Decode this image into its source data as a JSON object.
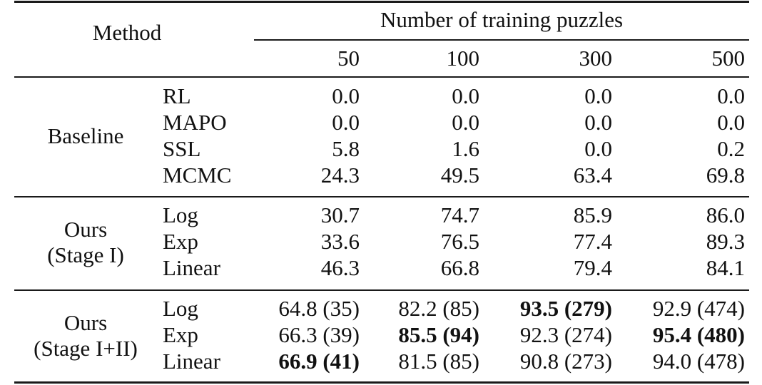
{
  "header": {
    "method": "Method",
    "group_title": "Number of training puzzles",
    "columns": [
      "50",
      "100",
      "300",
      "500"
    ]
  },
  "sections": [
    {
      "group": [
        "Baseline"
      ],
      "rows": [
        {
          "method": "RL",
          "values": [
            "0.0",
            "0.0",
            "0.0",
            "0.0"
          ],
          "bold": [
            false,
            false,
            false,
            false
          ]
        },
        {
          "method": "MAPO",
          "values": [
            "0.0",
            "0.0",
            "0.0",
            "0.0"
          ],
          "bold": [
            false,
            false,
            false,
            false
          ]
        },
        {
          "method": "SSL",
          "values": [
            "5.8",
            "1.6",
            "0.0",
            "0.2"
          ],
          "bold": [
            false,
            false,
            false,
            false
          ]
        },
        {
          "method": "MCMC",
          "values": [
            "24.3",
            "49.5",
            "63.4",
            "69.8"
          ],
          "bold": [
            false,
            false,
            false,
            false
          ]
        }
      ]
    },
    {
      "group": [
        "Ours",
        "(Stage I)"
      ],
      "rows": [
        {
          "method": "Log",
          "values": [
            "30.7",
            "74.7",
            "85.9",
            "86.0"
          ],
          "bold": [
            false,
            false,
            false,
            false
          ]
        },
        {
          "method": "Exp",
          "values": [
            "33.6",
            "76.5",
            "77.4",
            "89.3"
          ],
          "bold": [
            false,
            false,
            false,
            false
          ]
        },
        {
          "method": "Linear",
          "values": [
            "46.3",
            "66.8",
            "79.4",
            "84.1"
          ],
          "bold": [
            false,
            false,
            false,
            false
          ]
        }
      ]
    },
    {
      "group": [
        "Ours",
        "(Stage I+II)"
      ],
      "rows": [
        {
          "method": "Log",
          "values": [
            "64.8 (35)",
            "82.2 (85)",
            "93.5 (279)",
            "92.9 (474)"
          ],
          "bold": [
            false,
            false,
            true,
            false
          ]
        },
        {
          "method": "Exp",
          "values": [
            "66.3 (39)",
            "85.5 (94)",
            "92.3 (274)",
            "95.4 (480)"
          ],
          "bold": [
            false,
            true,
            false,
            true
          ]
        },
        {
          "method": "Linear",
          "values": [
            "66.9 (41)",
            "81.5 (85)",
            "90.8 (273)",
            "94.0 (478)"
          ],
          "bold": [
            true,
            false,
            false,
            false
          ]
        }
      ]
    }
  ]
}
